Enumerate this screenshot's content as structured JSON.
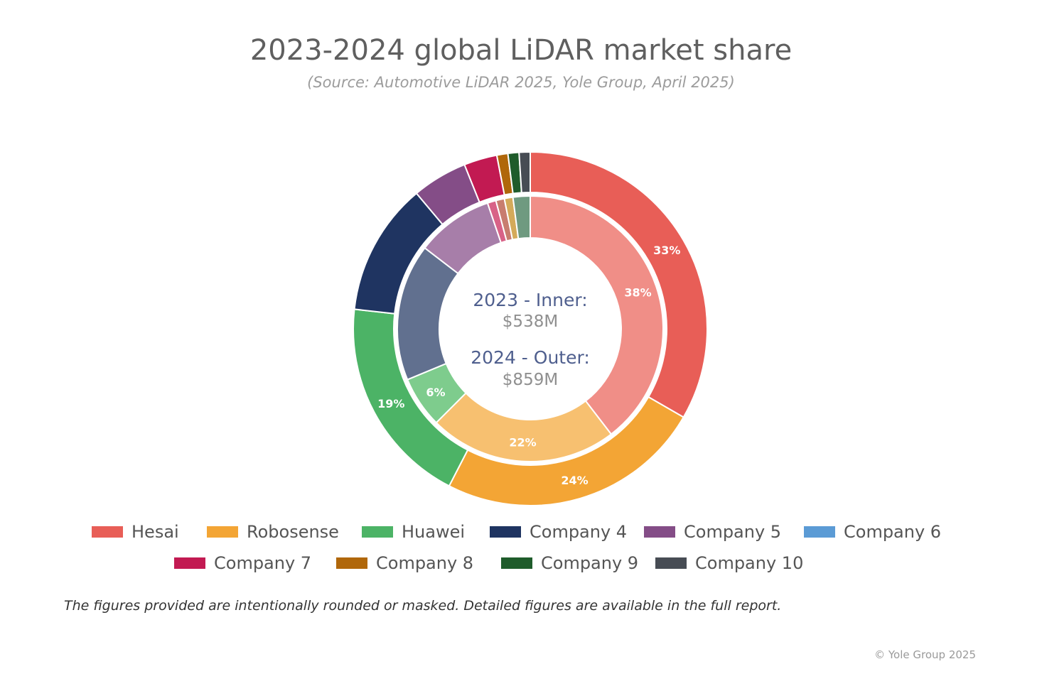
{
  "title": "2023-2024 global LiDAR market share",
  "subtitle": "(Source: Automotive LiDAR 2025, Yole Group, April 2025)",
  "center": {
    "inner_label": "2023 - Inner:",
    "inner_value": "$538M",
    "outer_label": "2024 - Outer:",
    "outer_value": "$859M"
  },
  "chart_data": {
    "type": "pie",
    "variant": "nested-donut",
    "categories": [
      "Hesai",
      "Robosense",
      "Huawei",
      "Company 4",
      "Company 5",
      "Company 6",
      "Company 7",
      "Company 8",
      "Company 9",
      "Company 10"
    ],
    "colors": [
      "#e85e57",
      "#f3a535",
      "#4cb366",
      "#1f3461",
      "#844d87",
      "#5b9bd5",
      "#c21a52",
      "#b0670a",
      "#1f5c2b",
      "#474c54"
    ],
    "series": [
      {
        "name": "2023 - Inner",
        "values": [
          38,
          22,
          6,
          16,
          9,
          0,
          1,
          1,
          1,
          2
        ],
        "data_labels": [
          "38%",
          "22%",
          "6%",
          "",
          "",
          "",
          "",
          "",
          "",
          ""
        ],
        "colors": [
          "#f08e87",
          "#f7c070",
          "#7ecc8d",
          "#61708f",
          "#a77ea9",
          "#8cbbe3",
          "#d86287",
          "#c87d6f",
          "#d4aa5a",
          "#6f9a80"
        ]
      },
      {
        "name": "2024 - Outer",
        "values": [
          33,
          24,
          19,
          12,
          5,
          0,
          3,
          1,
          1,
          1
        ],
        "data_labels": [
          "33%",
          "24%",
          "19%",
          "",
          "",
          "",
          "",
          "",
          "",
          ""
        ]
      }
    ],
    "legend_position": "bottom"
  },
  "footnote": "The figures provided are intentionally rounded or masked. Detailed figures are available in the full report.",
  "copyright": "© Yole Group 2025"
}
